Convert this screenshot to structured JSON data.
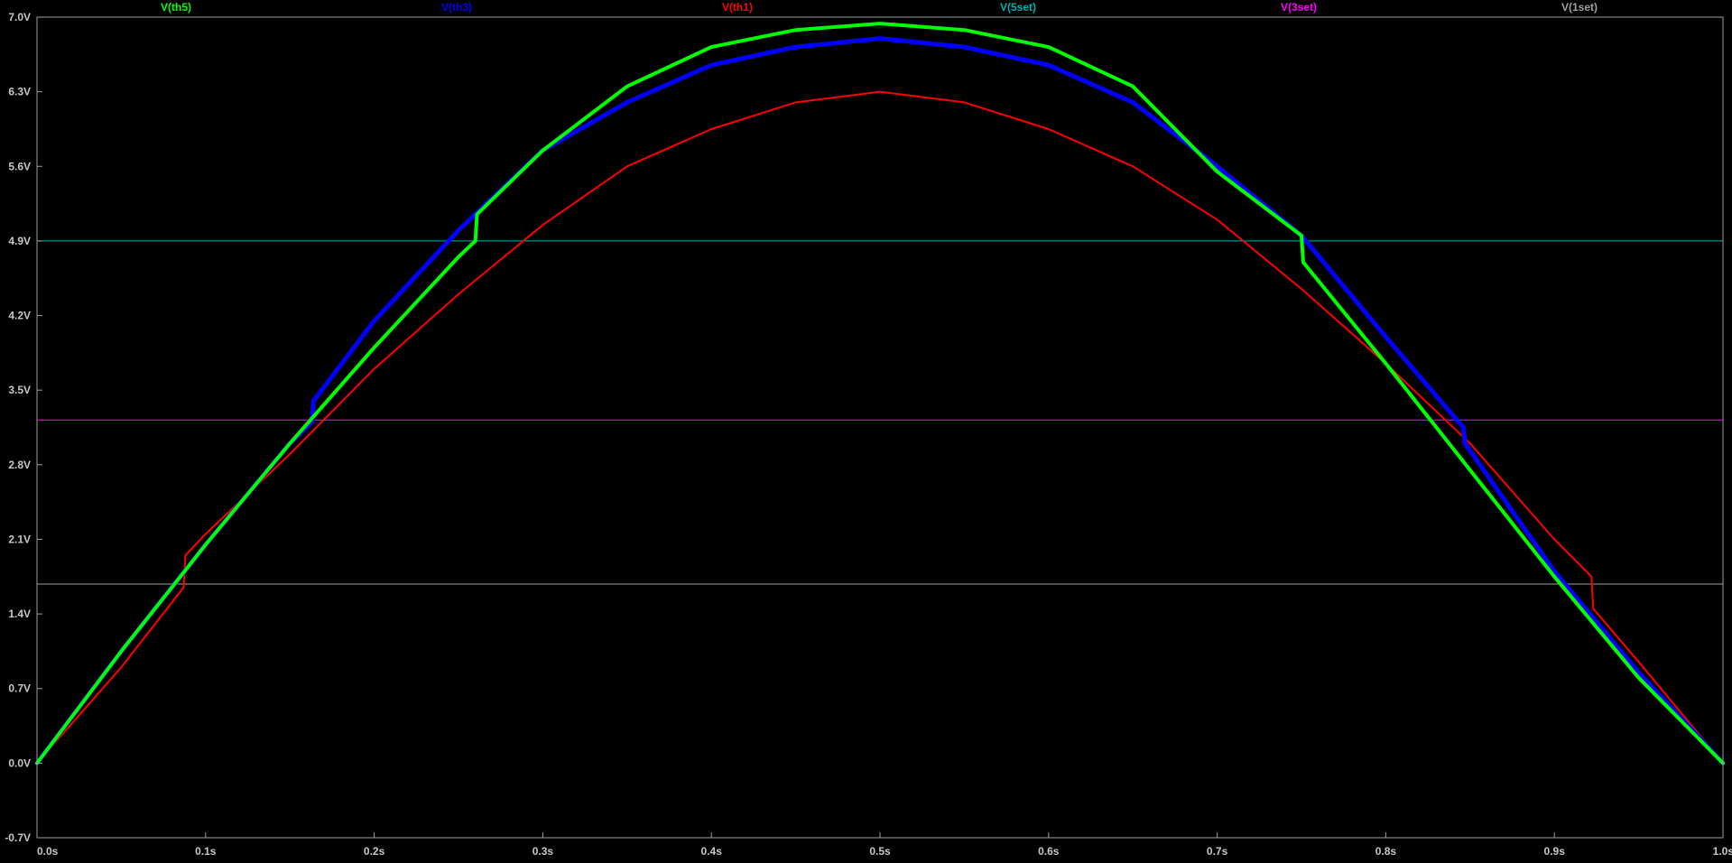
{
  "chart_data": {
    "type": "line",
    "title": "",
    "xlabel": "",
    "ylabel": "",
    "xlim": [
      0.0,
      1.0
    ],
    "ylim": [
      -0.7,
      7.0
    ],
    "grid": false,
    "legend_position": "top",
    "x_ticks": [
      0.0,
      0.1,
      0.2,
      0.3,
      0.4,
      0.5,
      0.6,
      0.7,
      0.8,
      0.9,
      1.0
    ],
    "x_tick_labels": [
      "0.0s",
      "0.1s",
      "0.2s",
      "0.3s",
      "0.4s",
      "0.5s",
      "0.6s",
      "0.7s",
      "0.8s",
      "0.9s",
      "1.0s"
    ],
    "y_ticks": [
      7.0,
      6.3,
      5.6,
      4.9,
      4.2,
      3.5,
      2.8,
      2.1,
      1.4,
      0.7,
      0.0,
      -0.7
    ],
    "y_tick_labels": [
      "7.0V",
      "6.3V",
      "5.6V",
      "4.9V",
      "4.2V",
      "3.5V",
      "2.8V",
      "2.1V",
      "1.4V",
      "0.7V",
      "0.0V",
      "-0.7V"
    ],
    "series": [
      {
        "name": "V(th5)",
        "color": "#00ff00",
        "x": [
          0.0,
          0.05,
          0.1,
          0.15,
          0.2,
          0.25,
          0.26,
          0.261,
          0.3,
          0.35,
          0.4,
          0.45,
          0.5,
          0.55,
          0.6,
          0.65,
          0.7,
          0.75,
          0.751,
          0.8,
          0.85,
          0.9,
          0.95,
          1.0
        ],
        "y": [
          0.0,
          1.05,
          2.05,
          3.0,
          3.9,
          4.75,
          4.9,
          5.15,
          5.75,
          6.35,
          6.72,
          6.88,
          6.94,
          6.88,
          6.72,
          6.35,
          5.55,
          4.95,
          4.7,
          3.75,
          2.75,
          1.75,
          0.8,
          0.0
        ]
      },
      {
        "name": "V(th3)",
        "color": "#0000ff",
        "x": [
          0.0,
          0.05,
          0.1,
          0.15,
          0.163,
          0.164,
          0.2,
          0.25,
          0.3,
          0.35,
          0.4,
          0.45,
          0.5,
          0.55,
          0.6,
          0.65,
          0.7,
          0.75,
          0.8,
          0.846,
          0.847,
          0.9,
          0.95,
          1.0
        ],
        "y": [
          0.0,
          1.05,
          2.05,
          3.0,
          3.2,
          3.4,
          4.15,
          5.0,
          5.75,
          6.2,
          6.55,
          6.72,
          6.8,
          6.72,
          6.55,
          6.2,
          5.6,
          4.95,
          4.0,
          3.15,
          3.0,
          1.8,
          0.85,
          0.0
        ]
      },
      {
        "name": "V(th1)",
        "color": "#ff0000",
        "x": [
          0.0,
          0.05,
          0.087,
          0.088,
          0.1,
          0.15,
          0.2,
          0.25,
          0.3,
          0.35,
          0.4,
          0.45,
          0.5,
          0.55,
          0.6,
          0.65,
          0.7,
          0.75,
          0.8,
          0.85,
          0.9,
          0.922,
          0.923,
          0.95,
          1.0
        ],
        "y": [
          0.0,
          0.9,
          1.65,
          1.95,
          2.15,
          2.9,
          3.7,
          4.4,
          5.05,
          5.6,
          5.95,
          6.2,
          6.3,
          6.2,
          5.95,
          5.6,
          5.1,
          4.45,
          3.75,
          3.0,
          2.1,
          1.75,
          1.45,
          0.95,
          0.0
        ]
      },
      {
        "name": "V(5set)",
        "color": "#00b0b0",
        "x": [
          0.0,
          1.0
        ],
        "y": [
          4.9,
          4.9
        ]
      },
      {
        "name": "V(3set)",
        "color": "#ff00ff",
        "x": [
          0.0,
          1.0
        ],
        "y": [
          3.22,
          3.22
        ]
      },
      {
        "name": "V(1set)",
        "color": "#a0a0a0",
        "x": [
          0.0,
          1.0
        ],
        "y": [
          1.68,
          1.68
        ]
      }
    ]
  }
}
